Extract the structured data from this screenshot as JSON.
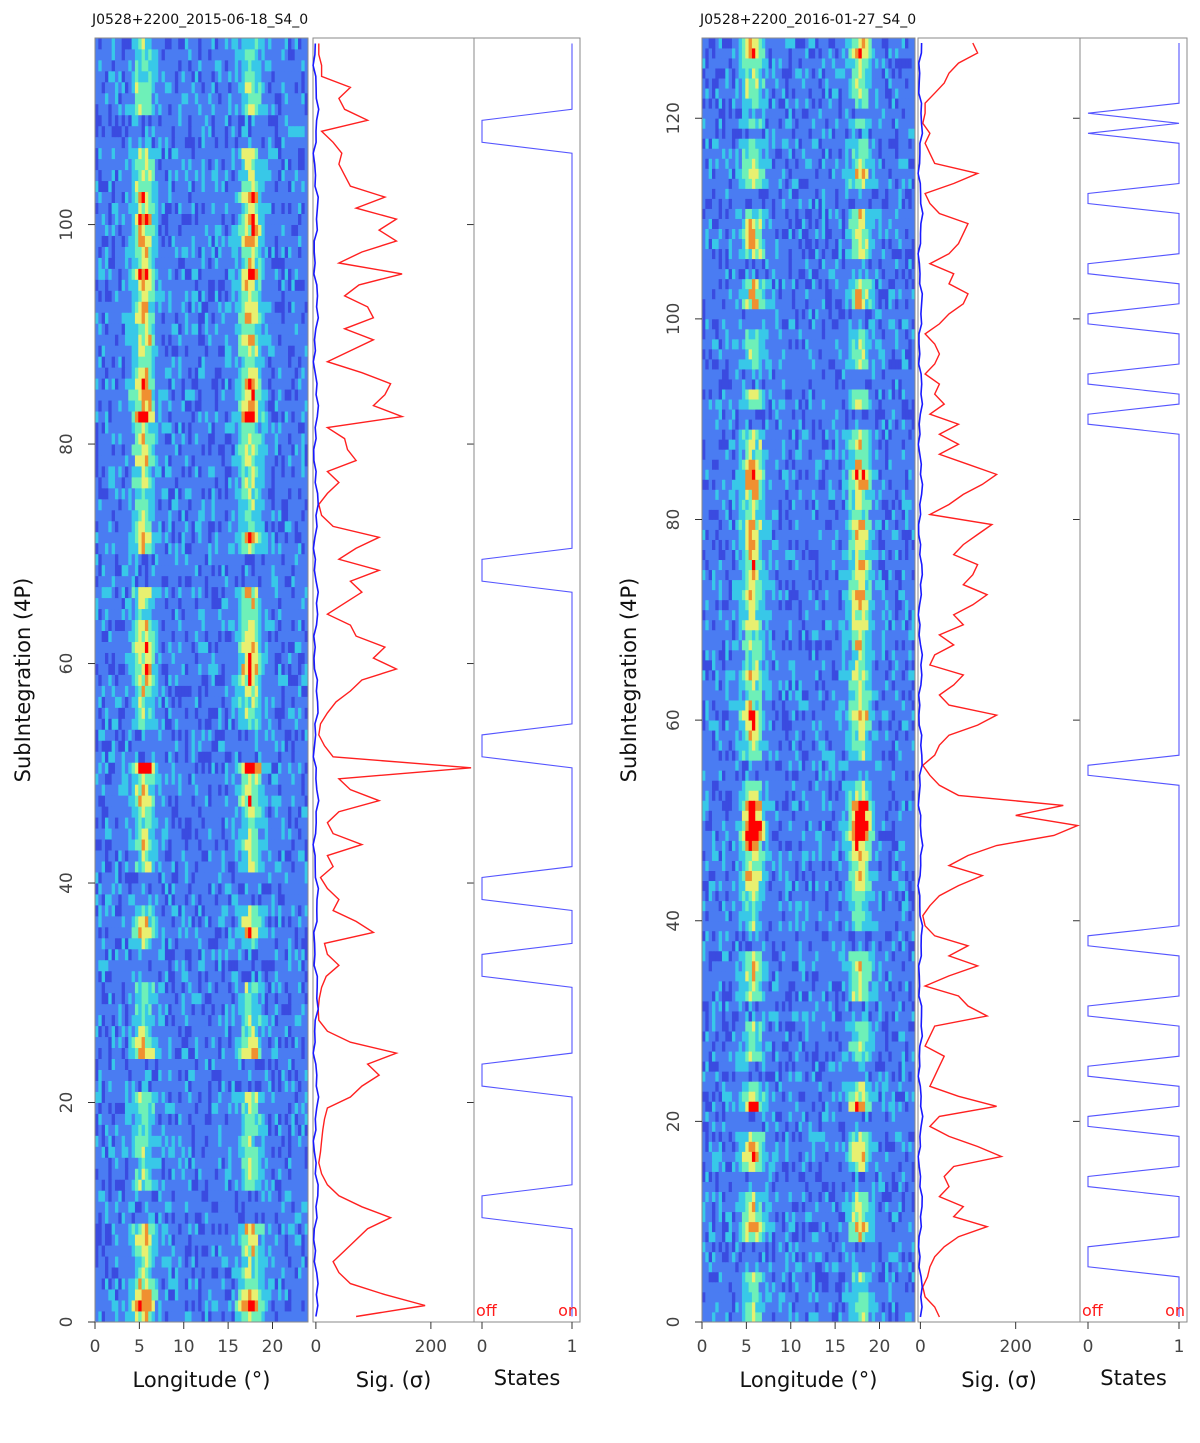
{
  "colors": {
    "significance_line": "#ff2020",
    "baseline_line": "#1a1aff",
    "states_line": "#5555ff",
    "colormap": [
      "#3a4be0",
      "#4a7cf2",
      "#38c8e8",
      "#6ef0b8",
      "#e8f070",
      "#f09030",
      "#ff0000"
    ]
  },
  "chart_data": [
    {
      "type": "heatmap",
      "title": "J0528+2200_2015-06-18_S4_0",
      "ylabel": "SubIntegration (4P)",
      "n_subint": 117,
      "ylim": [
        0,
        117
      ],
      "yticks": [
        0,
        20,
        40,
        60,
        80,
        100
      ],
      "panels": [
        {
          "name": "longitude",
          "xlabel": "Longitude (°)",
          "xlim": [
            0,
            24
          ],
          "xticks": [
            0,
            5,
            10,
            15,
            20
          ]
        },
        {
          "name": "significance",
          "xlabel": "Sig. (σ)",
          "xlim": [
            -5,
            275
          ],
          "xticks": [
            0,
            200
          ]
        },
        {
          "name": "states",
          "xlabel": "States",
          "xlim": [
            0,
            1.15
          ],
          "xticks": [
            0,
            1
          ],
          "state_labels": [
            "off",
            "on"
          ]
        }
      ],
      "components": [
        5.5,
        17.5
      ],
      "significance": [
        70,
        190,
        120,
        60,
        40,
        30,
        50,
        70,
        90,
        130,
        80,
        40,
        20,
        10,
        5,
        8,
        10,
        12,
        15,
        20,
        60,
        80,
        110,
        90,
        140,
        60,
        20,
        5,
        4,
        6,
        10,
        18,
        40,
        20,
        15,
        100,
        70,
        30,
        40,
        20,
        8,
        30,
        20,
        80,
        30,
        20,
        40,
        110,
        60,
        40,
        270,
        30,
        15,
        5,
        8,
        20,
        35,
        60,
        80,
        140,
        100,
        120,
        70,
        60,
        20,
        50,
        80,
        60,
        110,
        40,
        70,
        110,
        30,
        10,
        5,
        20,
        40,
        20,
        70,
        55,
        50,
        20,
        150,
        100,
        120,
        130,
        80,
        20,
        60,
        100,
        50,
        100,
        90,
        50,
        75,
        150,
        40,
        80,
        140,
        110,
        140,
        70,
        120,
        60,
        50,
        40,
        45,
        30,
        10,
        90,
        50,
        40,
        60,
        10,
        10,
        5,
        5
      ],
      "states": [
        1,
        1,
        1,
        1,
        1,
        1,
        1,
        1,
        1,
        0,
        0,
        0,
        1,
        1,
        1,
        1,
        1,
        1,
        1,
        1,
        1,
        0,
        0,
        0,
        1,
        1,
        1,
        1,
        1,
        1,
        1,
        0,
        0,
        0,
        1,
        1,
        1,
        1,
        0,
        0,
        0,
        1,
        1,
        1,
        1,
        1,
        1,
        1,
        1,
        1,
        1,
        0,
        0,
        0,
        1,
        1,
        1,
        1,
        1,
        1,
        1,
        1,
        1,
        1,
        1,
        1,
        1,
        0,
        0,
        0,
        1,
        1,
        1,
        1,
        1,
        1,
        1,
        1,
        1,
        1,
        1,
        1,
        1,
        1,
        1,
        1,
        1,
        1,
        1,
        1,
        1,
        1,
        1,
        1,
        1,
        1,
        1,
        1,
        1,
        1,
        1,
        1,
        1,
        1,
        1,
        1,
        1,
        0,
        0,
        0,
        1,
        1,
        1,
        1,
        1,
        1,
        1
      ],
      "state_labels": [
        "off",
        "on"
      ]
    },
    {
      "type": "heatmap",
      "title": "J0528+2200_2016-01-27_S4_0",
      "ylabel": "SubIntegration (4P)",
      "n_subint": 128,
      "ylim": [
        0,
        128
      ],
      "yticks": [
        0,
        20,
        40,
        60,
        80,
        100,
        120
      ],
      "panels": [
        {
          "name": "longitude",
          "xlabel": "Longitude (°)",
          "xlim": [
            0,
            24
          ],
          "xticks": [
            0,
            5,
            10,
            15,
            20
          ]
        },
        {
          "name": "significance",
          "xlabel": "Sig. (σ)",
          "xlim": [
            -5,
            335
          ],
          "xticks": [
            0,
            200
          ]
        },
        {
          "name": "states",
          "xlabel": "States",
          "xlim": [
            0,
            1.15
          ],
          "xticks": [
            0,
            1
          ],
          "state_labels": [
            "off",
            "on"
          ]
        }
      ],
      "components": [
        5.7,
        17.8
      ],
      "significance": [
        40,
        30,
        10,
        5,
        15,
        20,
        30,
        50,
        80,
        140,
        70,
        90,
        40,
        60,
        50,
        70,
        170,
        120,
        60,
        20,
        40,
        160,
        80,
        20,
        30,
        40,
        50,
        10,
        20,
        30,
        140,
        100,
        80,
        10,
        60,
        120,
        60,
        100,
        30,
        10,
        5,
        20,
        40,
        80,
        130,
        60,
        100,
        160,
        280,
        330,
        200,
        300,
        80,
        40,
        20,
        5,
        30,
        40,
        60,
        120,
        160,
        60,
        40,
        70,
        90,
        20,
        30,
        70,
        40,
        90,
        70,
        110,
        140,
        90,
        110,
        120,
        70,
        90,
        120,
        150,
        20,
        60,
        90,
        130,
        160,
        100,
        40,
        80,
        40,
        80,
        20,
        50,
        30,
        40,
        10,
        30,
        40,
        30,
        10,
        40,
        60,
        90,
        100,
        60,
        70,
        20,
        60,
        80,
        90,
        100,
        40,
        20,
        10,
        70,
        120,
        30,
        20,
        10,
        20,
        5,
        10,
        10,
        30,
        50,
        60,
        80,
        120,
        110
      ],
      "states": [
        1,
        1,
        1,
        1,
        1,
        0,
        0,
        0,
        1,
        1,
        1,
        1,
        1,
        0,
        0,
        1,
        1,
        1,
        1,
        0,
        0,
        1,
        1,
        1,
        0,
        0,
        1,
        1,
        1,
        1,
        0,
        0,
        1,
        1,
        1,
        1,
        1,
        0,
        0,
        1,
        1,
        1,
        1,
        1,
        1,
        1,
        1,
        1,
        1,
        1,
        1,
        1,
        1,
        1,
        0,
        0,
        1,
        1,
        1,
        1,
        1,
        1,
        1,
        1,
        1,
        1,
        1,
        1,
        1,
        1,
        1,
        1,
        1,
        1,
        1,
        1,
        1,
        1,
        1,
        1,
        1,
        1,
        1,
        1,
        1,
        1,
        1,
        1,
        1,
        0,
        0,
        1,
        1,
        0,
        0,
        1,
        1,
        1,
        1,
        0,
        0,
        1,
        1,
        1,
        0,
        0,
        1,
        1,
        1,
        1,
        1,
        0,
        0,
        1,
        1,
        1,
        1,
        1,
        0,
        1,
        0,
        1,
        1,
        1,
        1,
        1,
        1,
        1
      ]
    }
  ]
}
